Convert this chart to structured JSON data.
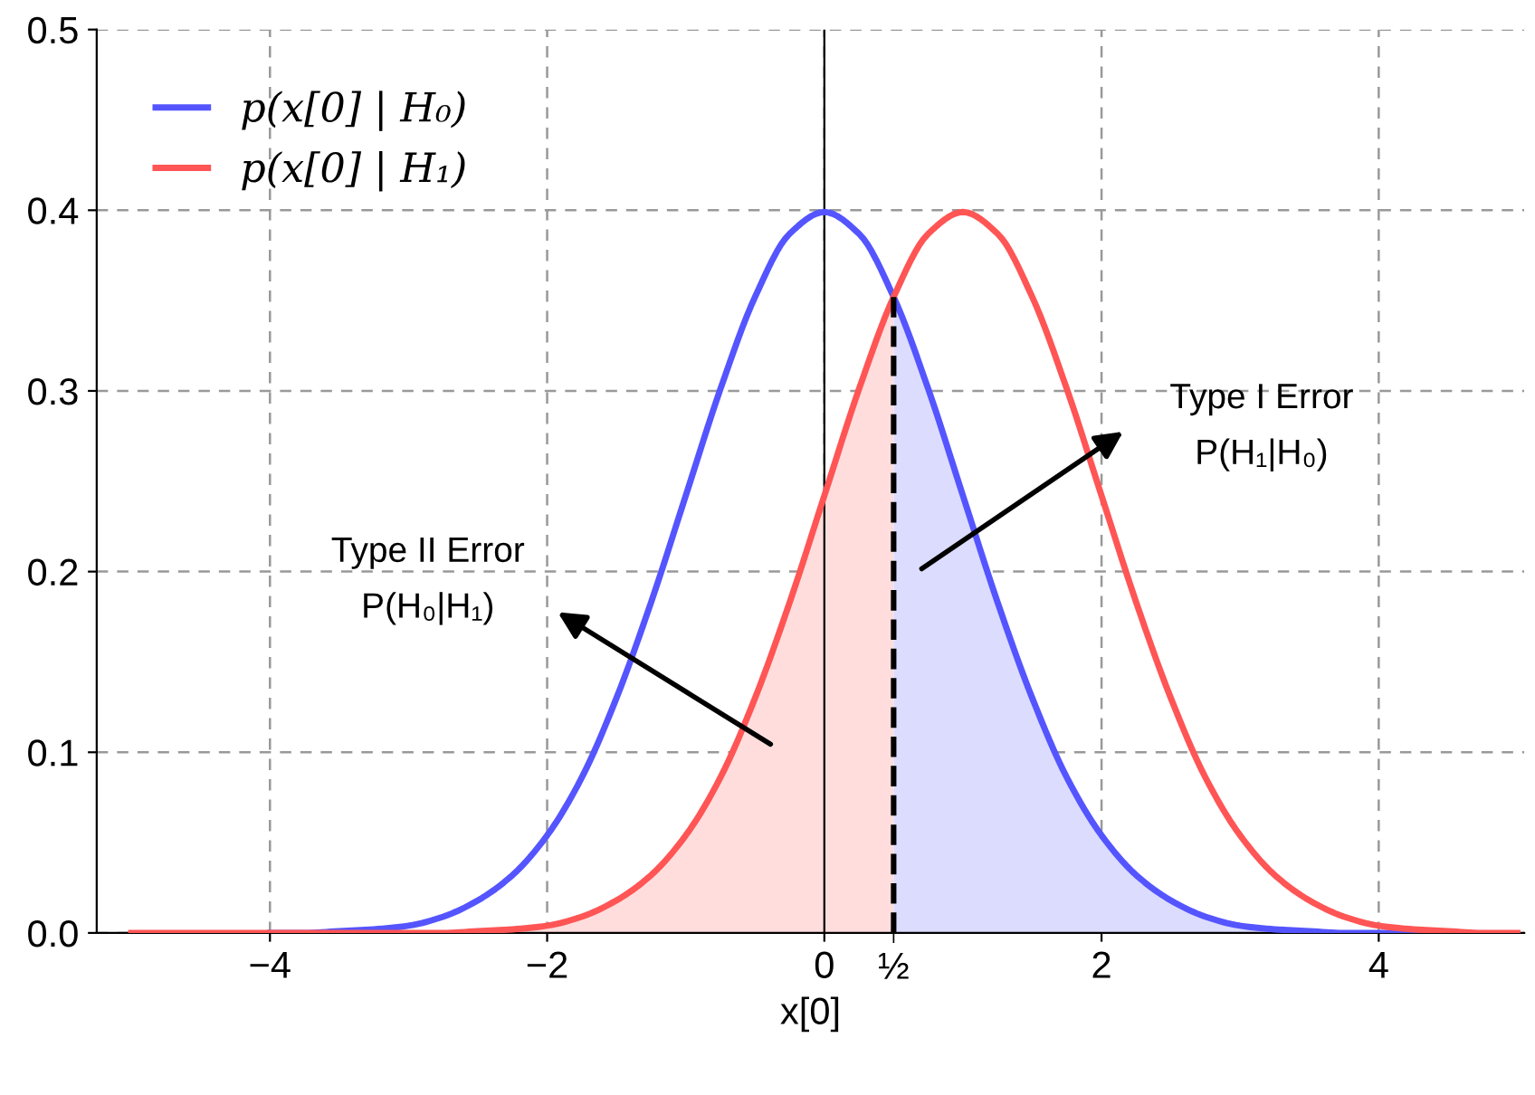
{
  "chart_data": {
    "type": "line",
    "xlabel": "x[0]",
    "x": [
      -5,
      -4.75,
      -4.5,
      -4.25,
      -4,
      -3.75,
      -3.5,
      -3.25,
      -3,
      -2.75,
      -2.5,
      -2.25,
      -2,
      -1.75,
      -1.5,
      -1.25,
      -1,
      -0.75,
      -0.5,
      -0.25,
      0,
      0.25,
      0.5,
      0.75,
      1,
      1.25,
      1.5,
      1.75,
      2,
      2.25,
      2.5,
      2.75,
      3,
      3.25,
      3.5,
      3.75,
      4,
      4.25,
      4.5,
      4.75,
      5
    ],
    "series": [
      {
        "name": "p(x[0] | H₀)",
        "color": "#5555ff",
        "values": [
          null,
          null,
          null,
          null,
          0,
          0,
          0.001,
          0.002,
          0.004,
          0.009,
          0.018,
          0.032,
          0.054,
          0.086,
          0.13,
          0.183,
          0.242,
          0.301,
          0.352,
          0.387,
          0.399,
          0.387,
          0.352,
          0.301,
          0.242,
          0.183,
          0.13,
          0.086,
          0.054,
          0.032,
          0.018,
          0.009,
          0.004,
          0.002,
          0.001,
          0,
          0,
          0,
          0,
          null,
          null
        ]
      },
      {
        "name": "p(x[0] | H₁)",
        "color": "#ff5555",
        "values": [
          0,
          0,
          0,
          0,
          0,
          0,
          0,
          0,
          0,
          0,
          0.001,
          0.002,
          0.004,
          0.009,
          0.018,
          0.032,
          0.054,
          0.086,
          0.13,
          0.183,
          0.242,
          0.301,
          0.352,
          0.387,
          0.399,
          0.387,
          0.352,
          0.301,
          0.242,
          0.183,
          0.13,
          0.086,
          0.054,
          0.032,
          0.018,
          0.009,
          0.004,
          0.002,
          0.001,
          0,
          0
        ]
      },
      {
        "type": "area",
        "color": "#ffdddd",
        "x": [
          -5,
          -4.75,
          -4.5,
          -4.25,
          -4,
          -3.75,
          -3.5,
          -3.25,
          -3,
          -2.75,
          -2.5,
          -2.25,
          -2,
          -1.75,
          -1.5,
          -1.25,
          -1,
          -0.75,
          -0.5,
          -0.25,
          0,
          0.25,
          0.5
        ],
        "values": [
          0,
          0,
          0,
          0,
          0,
          0,
          0,
          0,
          0,
          0,
          0.001,
          0.002,
          0.004,
          0.009,
          0.018,
          0.032,
          0.054,
          0.086,
          0.13,
          0.183,
          0.242,
          0.301,
          0.352
        ]
      },
      {
        "type": "area",
        "color": "#dcdcff",
        "x": [
          0.5,
          0.75,
          1,
          1.25,
          1.5,
          1.75,
          2,
          2.25,
          2.5,
          2.75,
          3,
          3.25,
          3.5,
          3.75,
          4,
          4.25,
          4.5,
          4.75,
          5
        ],
        "values": [
          0.352,
          0.301,
          0.242,
          0.183,
          0.13,
          0.086,
          0.054,
          0.032,
          0.018,
          0.009,
          0.004,
          0.002,
          0.001,
          0,
          0,
          0,
          0,
          0,
          0
        ]
      },
      {
        "type": "line",
        "color": "#000000",
        "line_style": "dashed",
        "x": [
          0.5,
          0.5
        ],
        "values": [
          0,
          0.352
        ]
      }
    ],
    "ref_lines": [
      {
        "axis": "x",
        "value": 0,
        "color": "#000000"
      }
    ],
    "annotations": [
      "Type I Error\nP(H₁|H₀)",
      "Type II Error\nP(H₀|H₁)"
    ],
    "xlim": [
      -5.25,
      5.05
    ],
    "ylim": [
      0,
      0.5
    ],
    "xticks": [
      {
        "value": -4,
        "label": "−4"
      },
      {
        "value": -2,
        "label": "−2"
      },
      0,
      {
        "value": 0.5,
        "label": "½"
      },
      2,
      4
    ],
    "yticks": [
      {
        "value": 0,
        "label": "0.0"
      },
      0.1,
      0.2,
      0.3,
      0.4,
      0.5
    ],
    "grid": true,
    "legend": "top left"
  }
}
